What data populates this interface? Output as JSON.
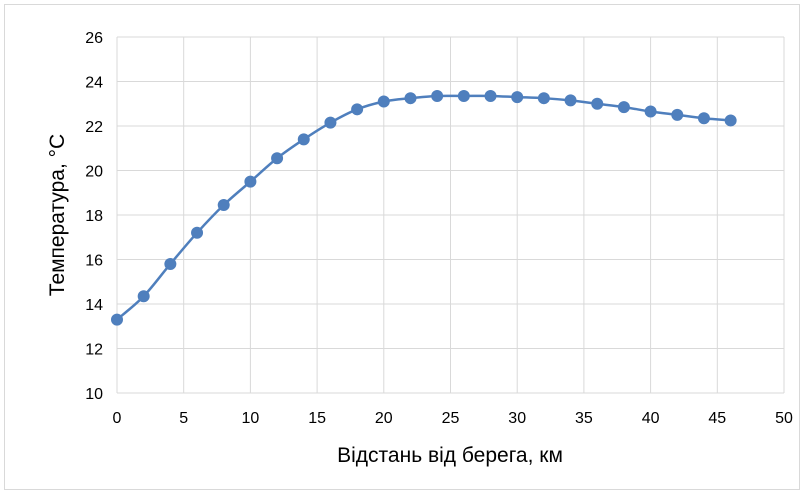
{
  "chart_data": {
    "type": "scatter",
    "title": "",
    "xlabel": "Відстань від берега, км",
    "ylabel": "Температура, °С",
    "xlim": [
      0,
      50
    ],
    "ylim": [
      10,
      26
    ],
    "xticks": [
      0,
      5,
      10,
      15,
      20,
      25,
      30,
      35,
      40,
      45,
      50
    ],
    "yticks": [
      10,
      12,
      14,
      16,
      18,
      20,
      22,
      24,
      26
    ],
    "grid": true,
    "legend": "none",
    "smooth_line": true,
    "colors": {
      "series": "#4f7fbd",
      "grid": "#d9d9d9",
      "frame": "#d9d9d9"
    },
    "series": [
      {
        "x": [
          0,
          2,
          4,
          6,
          8,
          10,
          12,
          14,
          16,
          18,
          20,
          22,
          24,
          26,
          28,
          30,
          32,
          34,
          36,
          38,
          40,
          42,
          44,
          46
        ],
        "y": [
          13.3,
          14.35,
          15.8,
          17.2,
          18.45,
          19.5,
          20.55,
          21.4,
          22.15,
          22.75,
          23.1,
          23.25,
          23.35,
          23.35,
          23.35,
          23.3,
          23.25,
          23.15,
          23.0,
          22.85,
          22.65,
          22.5,
          22.35,
          22.25
        ]
      }
    ]
  }
}
